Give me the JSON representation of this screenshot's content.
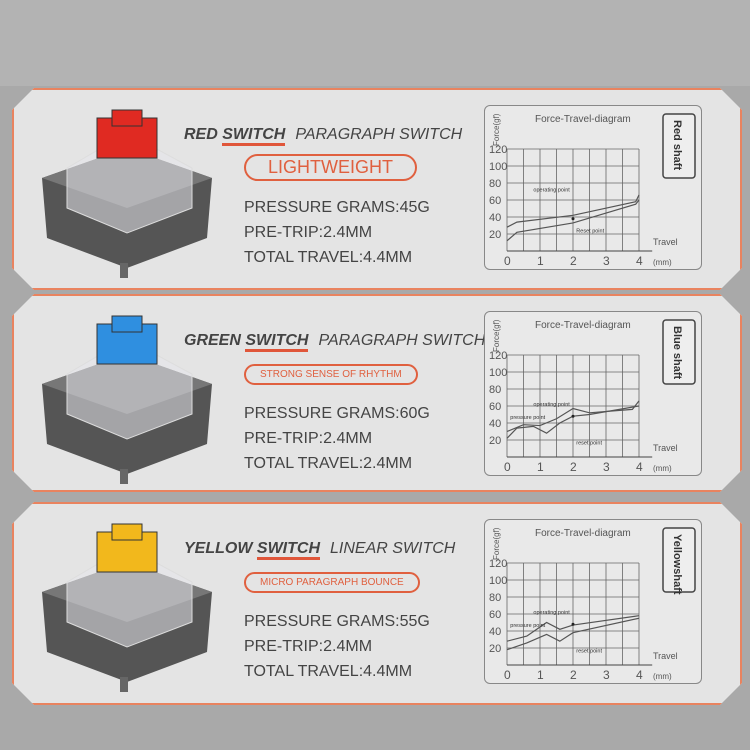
{
  "cards": [
    {
      "color": "#e02a22",
      "name_a": "RED ",
      "name_b": "SWITCH",
      "kind": "PARAGRAPH SWITCH",
      "badge": "LIGHTWEIGHT",
      "badge_size": "18px",
      "specs": [
        "PRESSURE GRAMS:45G",
        "PRE-TRIP:2.4MM",
        "TOTAL TRAVEL:4.4MM"
      ],
      "chart": {
        "title": "Force-Travel-diagram",
        "ylabel": "Force(gf)",
        "xlabel": "Travel",
        "unit": "(mm)",
        "tag": "Red shaft",
        "op_label": "operating point",
        "reset_label": "Reset point",
        "upper": [
          [
            0,
            28
          ],
          [
            0.3,
            34
          ],
          [
            2,
            42
          ],
          [
            3.9,
            58
          ],
          [
            4,
            66
          ]
        ],
        "lower": [
          [
            0,
            12
          ],
          [
            0.3,
            22
          ],
          [
            2,
            33
          ],
          [
            3.9,
            55
          ],
          [
            4,
            60
          ]
        ]
      }
    },
    {
      "color": "#2f8fe0",
      "name_a": "GREEN ",
      "name_b": "SWITCH",
      "kind": "PARAGRAPH SWITCH",
      "badge": "STRONG SENSE OF RHYTHM",
      "badge_size": "10px",
      "specs": [
        "PRESSURE GRAMS:60G",
        "PRE-TRIP:2.4MM",
        "TOTAL TRAVEL:2.4MM"
      ],
      "chart": {
        "title": "Force-Travel-diagram",
        "ylabel": "Force(gf)",
        "xlabel": "Travel",
        "unit": "(mm)",
        "tag": "Blue shaft",
        "op_label": "operating point",
        "pressure_label": "pressure point",
        "reset_label": "reset point",
        "upper": [
          [
            0,
            30
          ],
          [
            0.5,
            38
          ],
          [
            1,
            37
          ],
          [
            1.5,
            45
          ],
          [
            2,
            57
          ],
          [
            2.5,
            52
          ],
          [
            3.8,
            56
          ],
          [
            4,
            66
          ]
        ],
        "lower": [
          [
            0,
            22
          ],
          [
            0.3,
            34
          ],
          [
            0.8,
            36
          ],
          [
            1.2,
            28
          ],
          [
            1.6,
            40
          ],
          [
            2,
            48
          ],
          [
            2.5,
            50
          ],
          [
            4,
            60
          ]
        ]
      }
    },
    {
      "color": "#f2b81c",
      "name_a": "YELLOW ",
      "name_b": "SWITCH",
      "kind": "LINEAR SWITCH",
      "badge": "MICRO PARAGRAPH BOUNCE",
      "badge_size": "10px",
      "specs": [
        "PRESSURE GRAMS:55G",
        "PRE-TRIP:2.4MM",
        "TOTAL TRAVEL:4.4MM"
      ],
      "chart": {
        "title": "Force-Travel-diagram",
        "ylabel": "Force(gf)",
        "xlabel": "Travel",
        "unit": "(mm)",
        "tag": "Yellowshaft",
        "op_label": "operating point",
        "pressure_label": "pressure point",
        "reset_label": "reset point",
        "upper": [
          [
            0,
            28
          ],
          [
            0.6,
            34
          ],
          [
            1.2,
            50
          ],
          [
            1.6,
            42
          ],
          [
            2,
            47
          ],
          [
            4,
            58
          ]
        ],
        "lower": [
          [
            0,
            18
          ],
          [
            0.6,
            26
          ],
          [
            1.2,
            36
          ],
          [
            1.6,
            28
          ],
          [
            2,
            38
          ],
          [
            4,
            55
          ]
        ]
      }
    }
  ]
}
